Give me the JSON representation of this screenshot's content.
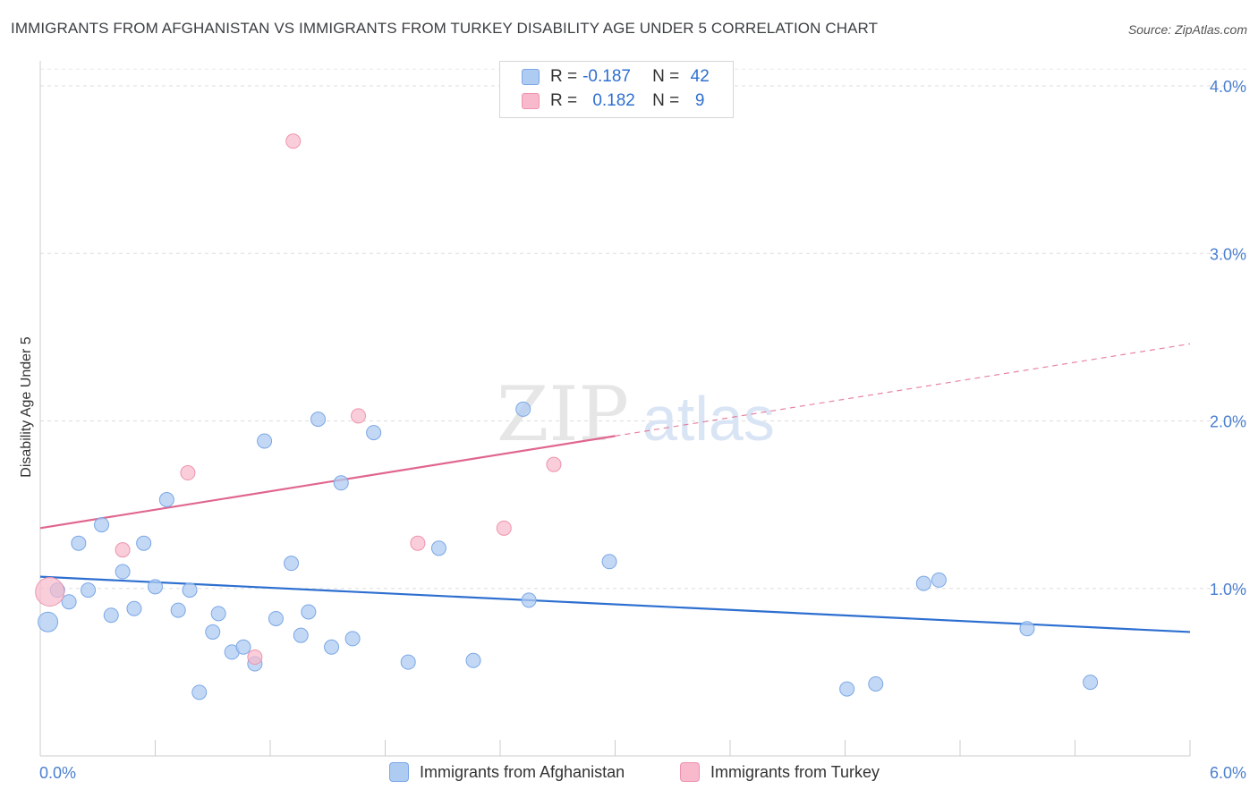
{
  "title": "IMMIGRANTS FROM AFGHANISTAN VS IMMIGRANTS FROM TURKEY DISABILITY AGE UNDER 5 CORRELATION CHART",
  "source": "Source: ZipAtlas.com",
  "watermark": {
    "zip": "ZIP",
    "atlas": "atlas"
  },
  "legend": {
    "rows": [
      {
        "r_label": "R =",
        "r_value": "-0.187",
        "n_label": "N =",
        "n_value": "42",
        "color": "#aecbf2"
      },
      {
        "r_label": "R =",
        "r_value": "0.182",
        "n_label": "N =",
        "n_value": "9",
        "color": "#f7b9cb"
      }
    ]
  },
  "bottom_legend": {
    "items": [
      {
        "label": "Immigrants from Afghanistan",
        "color": "#aecbf2"
      },
      {
        "label": "Immigrants from Turkey",
        "color": "#f7b9cb"
      }
    ]
  },
  "chart_data": {
    "type": "scatter",
    "title": "IMMIGRANTS FROM AFGHANISTAN VS IMMIGRANTS FROM TURKEY DISABILITY AGE UNDER 5 CORRELATION CHART",
    "xlabel": "",
    "ylabel": "Disability Age Under 5",
    "xlim": [
      0,
      6
    ],
    "ylim": [
      0,
      4.1
    ],
    "x_tick_labels": [
      "0.0%",
      "6.0%"
    ],
    "y_ticks": [
      1,
      2,
      3,
      4
    ],
    "y_tick_labels": [
      "1.0%",
      "2.0%",
      "3.0%",
      "4.0%"
    ],
    "grid": true,
    "legend_position": "top-center",
    "series": [
      {
        "name": "Immigrants from Afghanistan",
        "color": "#aecbf2",
        "stroke": "#7ba7e6",
        "line_color": "#2d6fd0",
        "trend": {
          "x": [
            0,
            6
          ],
          "y": [
            1.07,
            0.74
          ]
        },
        "points": [
          [
            0.04,
            0.8
          ],
          [
            0.09,
            0.99
          ],
          [
            0.15,
            0.92
          ],
          [
            0.2,
            1.27
          ],
          [
            0.25,
            0.99
          ],
          [
            0.37,
            0.84
          ],
          [
            0.32,
            1.38
          ],
          [
            0.43,
            1.1
          ],
          [
            0.49,
            0.88
          ],
          [
            0.54,
            1.27
          ],
          [
            0.6,
            1.01
          ],
          [
            0.66,
            1.53
          ],
          [
            0.72,
            0.87
          ],
          [
            0.78,
            0.99
          ],
          [
            0.83,
            0.38
          ],
          [
            0.9,
            0.74
          ],
          [
            0.93,
            0.85
          ],
          [
            1.0,
            0.62
          ],
          [
            1.06,
            0.65
          ],
          [
            1.12,
            0.55
          ],
          [
            1.17,
            1.88
          ],
          [
            1.23,
            0.82
          ],
          [
            1.31,
            1.15
          ],
          [
            1.36,
            0.72
          ],
          [
            1.4,
            0.86
          ],
          [
            1.45,
            2.01
          ],
          [
            1.52,
            0.65
          ],
          [
            1.57,
            1.63
          ],
          [
            1.63,
            0.7
          ],
          [
            1.74,
            1.93
          ],
          [
            1.92,
            0.56
          ],
          [
            2.08,
            1.24
          ],
          [
            2.26,
            0.57
          ],
          [
            2.52,
            2.07
          ],
          [
            2.55,
            0.93
          ],
          [
            2.97,
            1.16
          ],
          [
            4.21,
            0.4
          ],
          [
            4.36,
            0.43
          ],
          [
            4.61,
            1.03
          ],
          [
            4.69,
            1.05
          ],
          [
            5.15,
            0.76
          ],
          [
            5.48,
            0.44
          ]
        ]
      },
      {
        "name": "Immigrants from Turkey",
        "color": "#f7b9cb",
        "stroke": "#ef93ad",
        "line_color": "#e0668e",
        "trend": {
          "x": [
            0,
            6
          ],
          "y": [
            1.36,
            2.46
          ]
        },
        "points": [
          [
            0.05,
            0.98
          ],
          [
            0.43,
            1.23
          ],
          [
            0.77,
            1.69
          ],
          [
            1.12,
            0.59
          ],
          [
            1.32,
            3.67
          ],
          [
            1.66,
            2.03
          ],
          [
            1.97,
            1.27
          ],
          [
            2.42,
            1.36
          ],
          [
            2.68,
            1.74
          ]
        ]
      }
    ]
  }
}
